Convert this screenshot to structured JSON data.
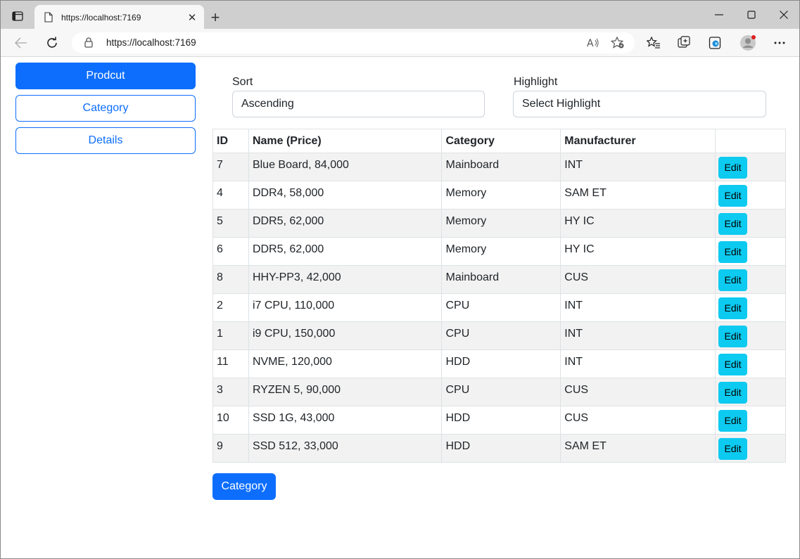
{
  "browser": {
    "tab_title": "https://localhost:7169",
    "url_host": "https://localhost:7169",
    "accent": "#0d6efd"
  },
  "sidebar": {
    "items": [
      {
        "label": "Prodcut",
        "active": true
      },
      {
        "label": "Category",
        "active": false
      },
      {
        "label": "Details",
        "active": false
      }
    ]
  },
  "filters": {
    "sort_label": "Sort",
    "sort_value": "Ascending",
    "highlight_label": "Highlight",
    "highlight_value": "Select Highlight"
  },
  "table": {
    "headers": [
      "ID",
      "Name (Price)",
      "Category",
      "Manufacturer",
      ""
    ],
    "edit_label": "Edit",
    "rows": [
      {
        "id": "7",
        "name": "Blue Board, 84,000",
        "category": "Mainboard",
        "manufacturer": "INT"
      },
      {
        "id": "4",
        "name": "DDR4, 58,000",
        "category": "Memory",
        "manufacturer": "SAM ET"
      },
      {
        "id": "5",
        "name": "DDR5, 62,000",
        "category": "Memory",
        "manufacturer": "HY IC"
      },
      {
        "id": "6",
        "name": "DDR5, 62,000",
        "category": "Memory",
        "manufacturer": "HY IC"
      },
      {
        "id": "8",
        "name": "HHY-PP3, 42,000",
        "category": "Mainboard",
        "manufacturer": "CUS"
      },
      {
        "id": "2",
        "name": "i7 CPU, 110,000",
        "category": "CPU",
        "manufacturer": "INT"
      },
      {
        "id": "1",
        "name": "i9 CPU, 150,000",
        "category": "CPU",
        "manufacturer": "INT"
      },
      {
        "id": "11",
        "name": "NVME, 120,000",
        "category": "HDD",
        "manufacturer": "INT"
      },
      {
        "id": "3",
        "name": "RYZEN 5, 90,000",
        "category": "CPU",
        "manufacturer": "CUS"
      },
      {
        "id": "10",
        "name": "SSD 1G, 43,000",
        "category": "HDD",
        "manufacturer": "CUS"
      },
      {
        "id": "9",
        "name": "SSD 512, 33,000",
        "category": "HDD",
        "manufacturer": "SAM ET"
      }
    ]
  },
  "footer": {
    "category_button": "Category"
  }
}
